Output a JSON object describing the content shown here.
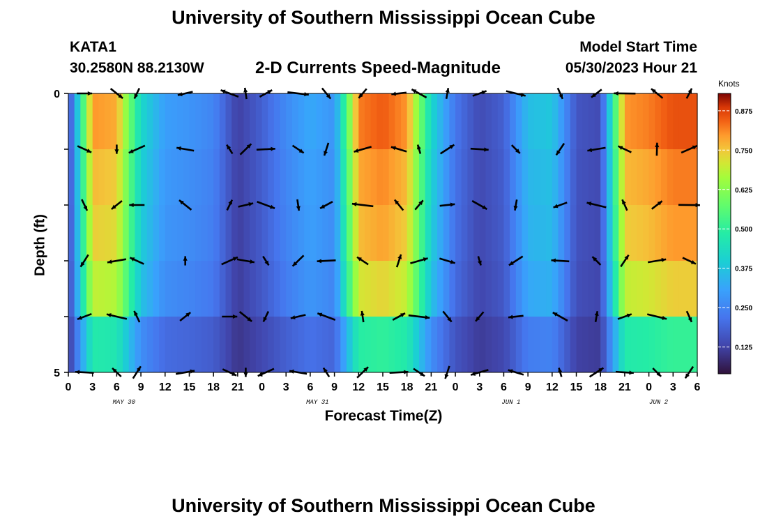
{
  "header": {
    "title": "University of Southern Mississippi Ocean Cube",
    "station_id": "KATA1",
    "coordinates": "30.2580N  88.2130W",
    "chart_title": "2-D Currents Speed-Magnitude",
    "model_start_label": "Model Start Time",
    "model_start_value": "05/30/2023 Hour 21"
  },
  "footer": {
    "title": "University of Southern Mississippi Ocean Cube"
  },
  "chart_data": {
    "type": "heatmap",
    "title": "2-D Currents Speed-Magnitude",
    "xlabel": "Forecast Time(Z)",
    "ylabel": "Depth (ft)",
    "x_ticks": [
      "0",
      "3",
      "6",
      "9",
      "12",
      "15",
      "18",
      "21",
      "0",
      "3",
      "6",
      "9",
      "12",
      "15",
      "18",
      "21",
      "0",
      "3",
      "6",
      "9",
      "12",
      "15",
      "18",
      "21",
      "0",
      "3",
      "6"
    ],
    "date_labels": [
      {
        "label": "MAY 30",
        "at_tick": 2.3
      },
      {
        "label": "MAY 31",
        "at_tick": 10.3
      },
      {
        "label": "JUN 1",
        "at_tick": 18.3
      },
      {
        "label": "JUN 2",
        "at_tick": 24.4
      }
    ],
    "y_ticks": [
      "0",
      "5"
    ],
    "ylim": [
      0,
      5
    ],
    "colorbar": {
      "label": "Knots",
      "ticks": [
        "0.125",
        "0.250",
        "0.375",
        "0.500",
        "0.625",
        "0.750",
        "0.875"
      ],
      "range": [
        0.04,
        0.93
      ]
    },
    "depth_bins": 5,
    "speed_profile_hours": [
      0,
      3,
      6,
      9,
      12,
      15,
      18,
      21,
      24,
      27,
      30,
      33,
      36,
      39,
      42,
      45,
      48,
      51,
      54,
      57,
      60,
      63,
      66,
      69,
      72,
      75,
      78
    ],
    "speed_profile_knots": [
      0.12,
      0.8,
      0.78,
      0.42,
      0.3,
      0.28,
      0.25,
      0.12,
      0.18,
      0.26,
      0.32,
      0.28,
      0.82,
      0.85,
      0.8,
      0.42,
      0.22,
      0.14,
      0.18,
      0.36,
      0.38,
      0.16,
      0.14,
      0.8,
      0.82,
      0.86,
      0.86
    ],
    "depth_factor": [
      1.0,
      0.95,
      0.92,
      0.85,
      0.55
    ],
    "arrow_rows_depth": [
      0,
      1,
      2,
      3,
      4,
      5
    ],
    "arrow_hours": [
      2,
      6,
      8.5,
      14.5,
      20,
      22,
      24.5,
      28.5,
      32,
      36.5,
      41,
      43.5,
      47,
      51,
      55.5,
      61,
      65.5,
      69,
      73,
      77
    ]
  }
}
